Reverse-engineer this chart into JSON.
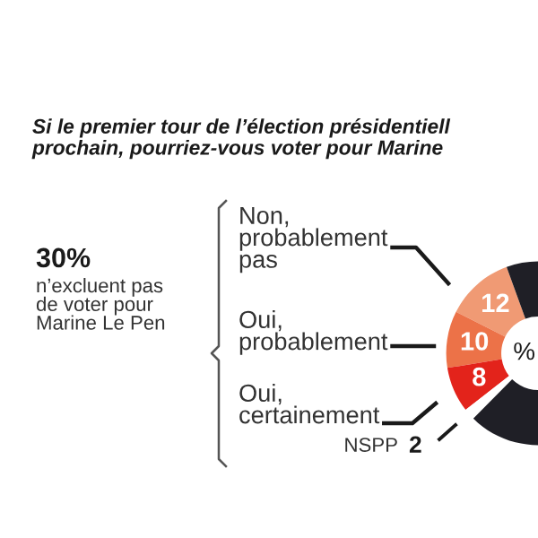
{
  "chart_data": {
    "type": "donut",
    "title": "Si le premier tour de l’élection présidentiell\nprochain, pourriez-vous voter pour Marine",
    "categories": [
      "Non,\nprobablement\npas",
      "Oui,\nprobablement",
      "Oui,\ncertainement",
      "NSPP",
      null
    ],
    "values": [
      12,
      10,
      8,
      2,
      68
    ],
    "colors": [
      "#f09a74",
      "#ec7248",
      "#e3231b",
      "#ffffff",
      "#1f1f26"
    ],
    "value_labels": [
      "12",
      "10",
      "8",
      "2",
      null
    ],
    "annotations": [
      "30%",
      "n’excluent pas\nde voter pour\nMarine Le Pen",
      "%"
    ],
    "legend": false
  }
}
